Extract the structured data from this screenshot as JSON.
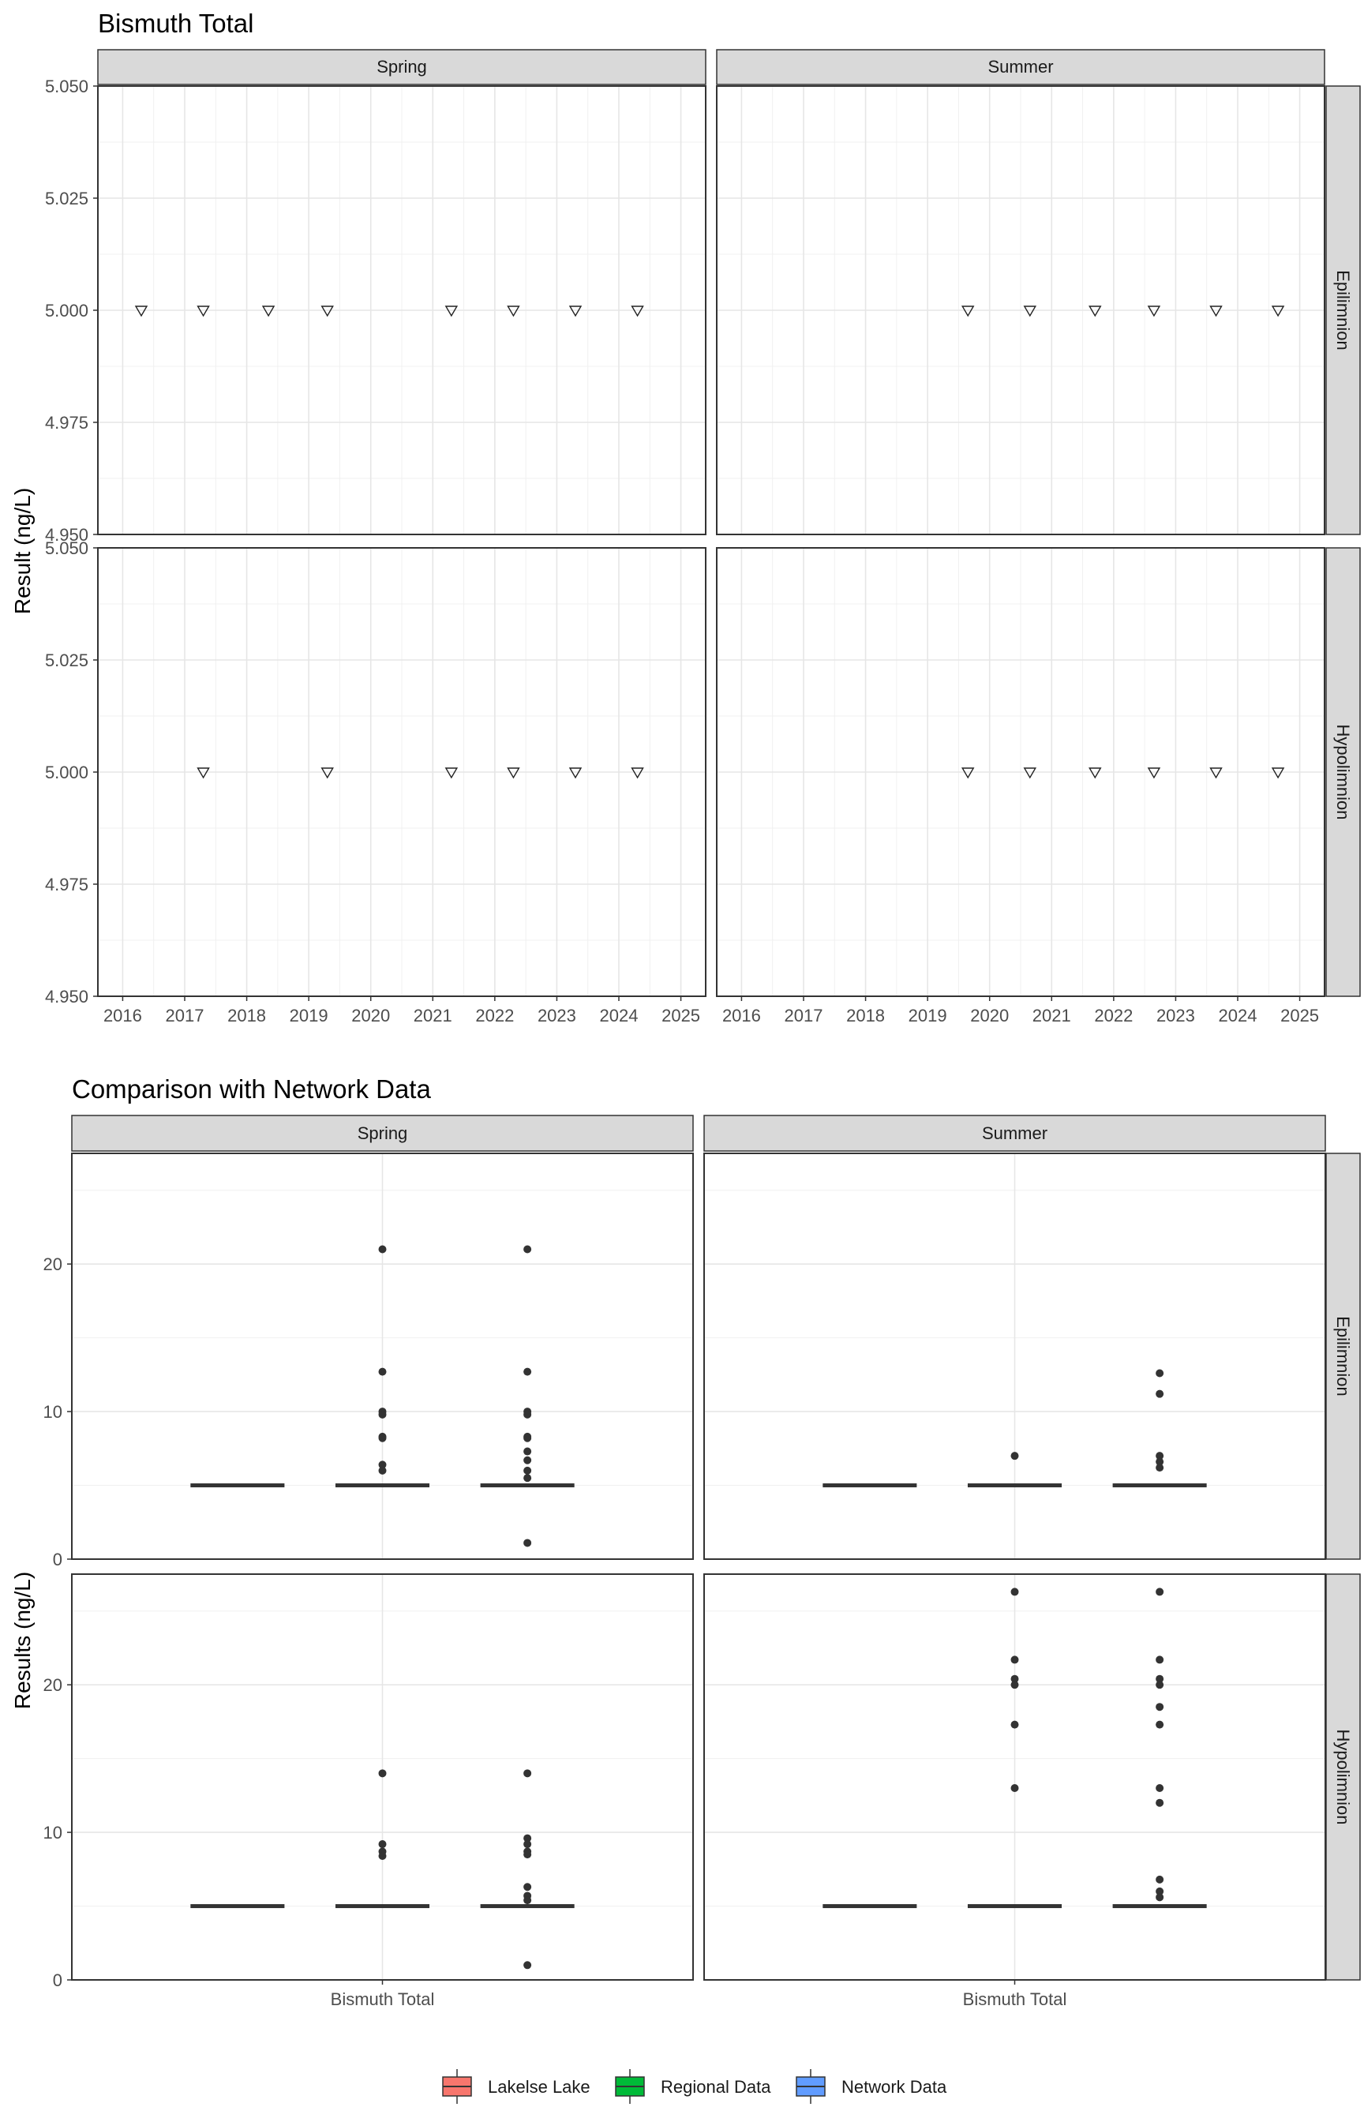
{
  "chart_data": [
    {
      "type": "scatter",
      "title": "Bismuth Total",
      "ylabel": "Result (ng/L)",
      "xlabel": "",
      "x_ticks": [
        "2016",
        "2017",
        "2018",
        "2019",
        "2020",
        "2021",
        "2022",
        "2023",
        "2024",
        "2025"
      ],
      "xlim": [
        2015.6,
        2025.4
      ],
      "y_ticks": [
        "4.950",
        "4.975",
        "5.000",
        "5.025",
        "5.050"
      ],
      "ylim": [
        4.95,
        5.05
      ],
      "grid": true,
      "marker": "open-triangle-down",
      "columns": [
        "Spring",
        "Summer"
      ],
      "rows": [
        "Epilimnion",
        "Hypolimnion"
      ],
      "panels": [
        {
          "col": "Spring",
          "row": "Epilimnion",
          "points": [
            [
              2016.3,
              5.0
            ],
            [
              2017.3,
              5.0
            ],
            [
              2018.35,
              5.0
            ],
            [
              2019.3,
              5.0
            ],
            [
              2021.3,
              5.0
            ],
            [
              2022.3,
              5.0
            ],
            [
              2023.3,
              5.0
            ],
            [
              2024.3,
              5.0
            ]
          ]
        },
        {
          "col": "Summer",
          "row": "Epilimnion",
          "points": [
            [
              2019.65,
              5.0
            ],
            [
              2020.65,
              5.0
            ],
            [
              2021.7,
              5.0
            ],
            [
              2022.65,
              5.0
            ],
            [
              2023.65,
              5.0
            ],
            [
              2024.65,
              5.0
            ]
          ]
        },
        {
          "col": "Spring",
          "row": "Hypolimnion",
          "points": [
            [
              2017.3,
              5.0
            ],
            [
              2019.3,
              5.0
            ],
            [
              2021.3,
              5.0
            ],
            [
              2022.3,
              5.0
            ],
            [
              2023.3,
              5.0
            ],
            [
              2024.3,
              5.0
            ]
          ]
        },
        {
          "col": "Summer",
          "row": "Hypolimnion",
          "points": [
            [
              2019.65,
              5.0
            ],
            [
              2020.65,
              5.0
            ],
            [
              2021.7,
              5.0
            ],
            [
              2022.65,
              5.0
            ],
            [
              2023.65,
              5.0
            ],
            [
              2024.65,
              5.0
            ]
          ]
        }
      ]
    },
    {
      "type": "box",
      "title": "Comparison with Network Data",
      "ylabel": "Results (ng/L)",
      "xlabel": "",
      "categories": [
        "Bismuth Total"
      ],
      "y_ticks": [
        "0",
        "10",
        "20"
      ],
      "ylim": [
        0,
        27.5
      ],
      "grid": true,
      "columns": [
        "Spring",
        "Summer"
      ],
      "rows": [
        "Epilimnion",
        "Hypolimnion"
      ],
      "series": [
        {
          "name": "Lakelse Lake",
          "color": "#F8766D"
        },
        {
          "name": "Regional Data",
          "color": "#00BA38"
        },
        {
          "name": "Network Data",
          "color": "#619CFF"
        }
      ],
      "panels": [
        {
          "col": "Spring",
          "row": "Epilimnion",
          "groups": [
            {
              "series": "Lakelse Lake",
              "median": 5,
              "outliers": []
            },
            {
              "series": "Regional Data",
              "median": 5,
              "outliers": [
                21,
                12.7,
                10,
                9.8,
                8.3,
                8.2,
                6.4,
                6.0
              ]
            },
            {
              "series": "Network Data",
              "median": 5,
              "outliers": [
                21,
                12.7,
                10,
                9.8,
                8.3,
                8.2,
                7.3,
                6.7,
                6.0,
                5.5,
                1.1
              ]
            }
          ]
        },
        {
          "col": "Summer",
          "row": "Epilimnion",
          "groups": [
            {
              "series": "Lakelse Lake",
              "median": 5,
              "outliers": []
            },
            {
              "series": "Regional Data",
              "median": 5,
              "outliers": [
                7.0
              ]
            },
            {
              "series": "Network Data",
              "median": 5,
              "outliers": [
                12.6,
                11.2,
                7.0,
                6.6,
                6.2
              ]
            }
          ]
        },
        {
          "col": "Spring",
          "row": "Hypolimnion",
          "groups": [
            {
              "series": "Lakelse Lake",
              "median": 5,
              "outliers": []
            },
            {
              "series": "Regional Data",
              "median": 5,
              "outliers": [
                14,
                9.2,
                8.7,
                8.4
              ]
            },
            {
              "series": "Network Data",
              "median": 5,
              "outliers": [
                14,
                9.6,
                9.2,
                8.7,
                8.5,
                6.3,
                5.7,
                5.4,
                1.0
              ]
            }
          ]
        },
        {
          "col": "Summer",
          "row": "Hypolimnion",
          "groups": [
            {
              "series": "Lakelse Lake",
              "median": 5,
              "outliers": []
            },
            {
              "series": "Regional Data",
              "median": 5,
              "outliers": [
                26.3,
                21.7,
                20.4,
                20.0,
                17.3,
                13.0
              ]
            },
            {
              "series": "Network Data",
              "median": 5,
              "outliers": [
                26.3,
                21.7,
                20.4,
                20.0,
                18.5,
                17.3,
                13.0,
                12.0,
                6.8,
                6.0,
                5.6
              ]
            }
          ]
        }
      ],
      "legend_position": "bottom"
    }
  ]
}
